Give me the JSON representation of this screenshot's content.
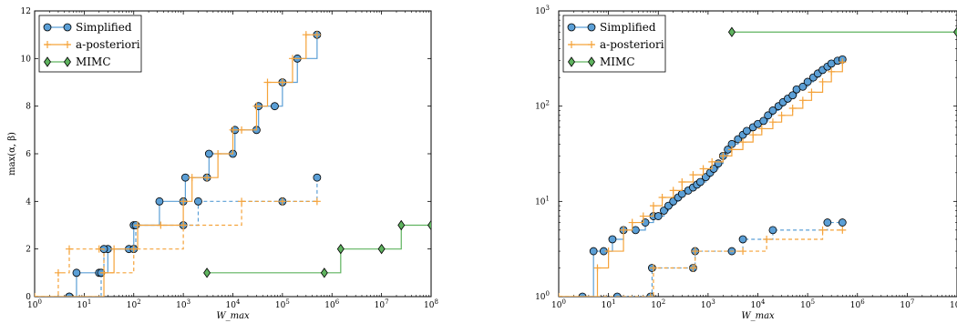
{
  "chart_data": [
    {
      "type": "line",
      "xscale": "log",
      "yscale": "linear",
      "xlim": [
        1,
        100000000
      ],
      "ylim": [
        0,
        12
      ],
      "xlabel": "W_max",
      "ylabel": "max(α, β)",
      "x_ticks": [
        {
          "value": 1,
          "mant": "10",
          "exp": "0"
        },
        {
          "value": 10,
          "mant": "10",
          "exp": "1"
        },
        {
          "value": 100,
          "mant": "10",
          "exp": "2"
        },
        {
          "value": 1000,
          "mant": "10",
          "exp": "3"
        },
        {
          "value": 10000,
          "mant": "10",
          "exp": "4"
        },
        {
          "value": 100000,
          "mant": "10",
          "exp": "5"
        },
        {
          "value": 1000000,
          "mant": "10",
          "exp": "6"
        },
        {
          "value": 10000000,
          "mant": "10",
          "exp": "7"
        },
        {
          "value": 100000000,
          "mant": "10",
          "exp": "8"
        }
      ],
      "y_ticks": [
        {
          "value": 0,
          "label": "0"
        },
        {
          "value": 2,
          "label": "2"
        },
        {
          "value": 4,
          "label": "4"
        },
        {
          "value": 6,
          "label": "6"
        },
        {
          "value": 8,
          "label": "8"
        },
        {
          "value": 10,
          "label": "10"
        },
        {
          "value": 12,
          "label": "12"
        }
      ],
      "legend_position": "top-left",
      "legend": [
        "Simplified",
        "a-posteriori",
        "MIMC"
      ],
      "grid": false,
      "series": [
        {
          "name": "Simplified",
          "style": "solid",
          "color": "#5b9fd6",
          "marker": "circle",
          "x": [
            5,
            7,
            20,
            30,
            80,
            100,
            330,
            1000,
            1100,
            3000,
            3300,
            10000,
            11000,
            30000,
            33000,
            70000,
            100000,
            200000,
            500000
          ],
          "y": [
            0,
            1,
            1,
            2,
            2,
            3,
            4,
            4,
            5,
            5,
            6,
            6,
            7,
            7,
            8,
            8,
            9,
            10,
            11
          ]
        },
        {
          "name": "",
          "style": "dashed",
          "color": "#5b9fd6",
          "marker": "circle",
          "x": [
            5,
            22,
            25,
            100,
            110,
            1000,
            2000,
            100000,
            500000
          ],
          "y": [
            0,
            1,
            2,
            2,
            3,
            3,
            4,
            4,
            5
          ]
        },
        {
          "name": "a-posteriori",
          "style": "solid",
          "color": "#f5a33a",
          "marker": "plus",
          "x": [
            1,
            25,
            40,
            120,
            350,
            1000,
            1500,
            3000,
            5000,
            10000,
            15000,
            30000,
            50000,
            100000,
            160000,
            300000,
            500000
          ],
          "y": [
            0,
            1,
            2,
            3,
            3,
            4,
            5,
            5,
            6,
            7,
            7,
            8,
            9,
            9,
            10,
            11,
            11
          ]
        },
        {
          "name": "",
          "style": "dashed",
          "color": "#f5a33a",
          "marker": "plus",
          "x": [
            1,
            3,
            5,
            20,
            25,
            100,
            1000,
            15000,
            100000,
            500000
          ],
          "y": [
            0,
            1,
            2,
            2,
            1,
            2,
            3,
            4,
            4,
            4
          ]
        },
        {
          "name": "MIMC",
          "style": "solid",
          "color": "#5fb35f",
          "marker": "diamond",
          "x": [
            3000,
            700000,
            1500000,
            10000000,
            25000000,
            100000000
          ],
          "y": [
            1,
            1,
            2,
            2,
            3,
            3
          ]
        }
      ]
    },
    {
      "type": "line",
      "xscale": "log",
      "yscale": "log",
      "xlim": [
        1,
        100000000
      ],
      "ylim": [
        1,
        1000
      ],
      "xlabel": "W_max",
      "ylabel": "",
      "x_ticks": [
        {
          "value": 1,
          "mant": "10",
          "exp": "0"
        },
        {
          "value": 10,
          "mant": "10",
          "exp": "1"
        },
        {
          "value": 100,
          "mant": "10",
          "exp": "2"
        },
        {
          "value": 1000,
          "mant": "10",
          "exp": "3"
        },
        {
          "value": 10000,
          "mant": "10",
          "exp": "4"
        },
        {
          "value": 100000,
          "mant": "10",
          "exp": "5"
        },
        {
          "value": 1000000,
          "mant": "10",
          "exp": "6"
        },
        {
          "value": 10000000,
          "mant": "10",
          "exp": "7"
        },
        {
          "value": 100000000,
          "mant": "10",
          "exp": "8"
        }
      ],
      "y_ticks": [
        {
          "value": 1,
          "mant": "10",
          "exp": "0"
        },
        {
          "value": 10,
          "mant": "10",
          "exp": "1"
        },
        {
          "value": 100,
          "mant": "10",
          "exp": "2"
        },
        {
          "value": 1000,
          "mant": "10",
          "exp": "3"
        }
      ],
      "legend_position": "top-left",
      "legend": [
        "Simplified",
        "a-posteriori",
        "MIMC"
      ],
      "grid": false,
      "series": [
        {
          "name": "Simplified",
          "style": "solid",
          "color": "#5b9fd6",
          "marker": "circle",
          "x": [
            3,
            5,
            8,
            12,
            20,
            35,
            55,
            80,
            100,
            130,
            160,
            200,
            250,
            300,
            400,
            500,
            600,
            700,
            900,
            1100,
            1300,
            1600,
            2000,
            2500,
            3000,
            4000,
            5000,
            6000,
            8000,
            10000,
            13000,
            16000,
            20000,
            26000,
            32000,
            40000,
            50000,
            60000,
            80000,
            100000,
            130000,
            160000,
            200000,
            250000,
            300000,
            400000,
            500000
          ],
          "y": [
            1,
            3,
            3,
            4,
            5,
            5,
            6,
            7,
            7,
            8,
            9,
            10,
            11,
            12,
            13,
            14,
            15,
            16,
            18,
            20,
            22,
            25,
            30,
            35,
            40,
            45,
            50,
            55,
            60,
            65,
            70,
            80,
            90,
            100,
            110,
            120,
            130,
            150,
            160,
            180,
            200,
            220,
            240,
            260,
            280,
            300,
            310
          ]
        },
        {
          "name": "",
          "style": "dashed",
          "color": "#5b9fd6",
          "marker": "circle",
          "x": [
            15,
            70,
            75,
            500,
            550,
            3000,
            5000,
            20000,
            250000,
            500000
          ],
          "y": [
            1,
            1,
            2,
            2,
            3,
            3,
            4,
            5,
            6,
            6
          ]
        },
        {
          "name": "a-posteriori",
          "style": "solid",
          "color": "#f5a33a",
          "marker": "plus",
          "x": [
            1,
            6,
            10,
            20,
            30,
            50,
            80,
            120,
            200,
            300,
            500,
            800,
            1200,
            2000,
            3000,
            5000,
            8000,
            12000,
            20000,
            30000,
            50000,
            80000,
            120000,
            200000,
            300000,
            500000
          ],
          "y": [
            1,
            2,
            3,
            5,
            6,
            7,
            9,
            11,
            13,
            16,
            19,
            22,
            26,
            30,
            35,
            42,
            50,
            58,
            68,
            80,
            95,
            115,
            140,
            180,
            230,
            290
          ]
        },
        {
          "name": "",
          "style": "dashed",
          "color": "#f5a33a",
          "marker": "plus",
          "x": [
            1,
            70,
            80,
            500,
            550,
            5000,
            15000,
            200000,
            500000
          ],
          "y": [
            1,
            1,
            2,
            2,
            3,
            3,
            4,
            5,
            5
          ]
        },
        {
          "name": "MIMC",
          "style": "solid",
          "color": "#5fb35f",
          "marker": "diamond",
          "x": [
            3000,
            100000000
          ],
          "y": [
            600,
            600
          ]
        }
      ]
    }
  ]
}
